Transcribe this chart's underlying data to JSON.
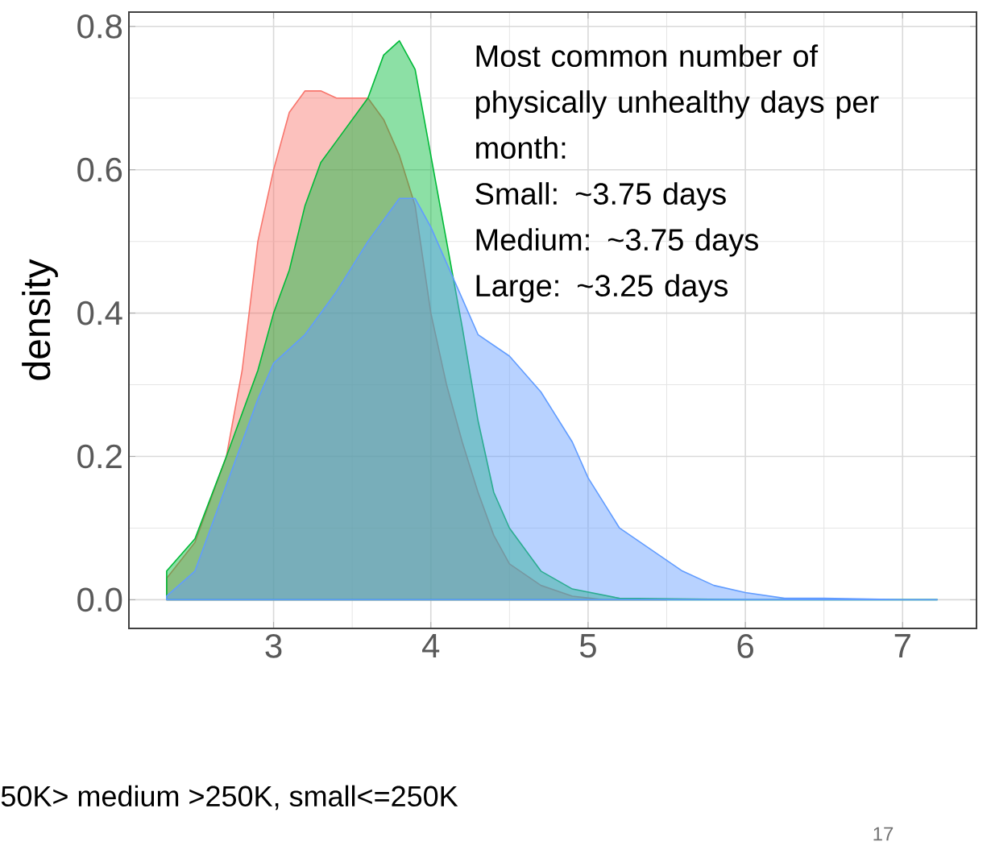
{
  "chart_data": {
    "type": "area",
    "ylabel": "density",
    "xlim": [
      2.08,
      7.47
    ],
    "ylim": [
      -0.04,
      0.82
    ],
    "xticks": [
      3,
      4,
      5,
      6,
      7
    ],
    "yticks": [
      {
        "value": 0,
        "label": "0.0"
      },
      0.2,
      0.4,
      0.6,
      0.8
    ],
    "grid": true,
    "annotations": [
      "Most common number of physically unhealthy days per month:",
      "Small: ~3.75 days",
      "Medium: ~3.75 days",
      "Large: ~3.25 days",
      "50K> medium >250K, small<=250K",
      "17"
    ],
    "series": [
      {
        "color": "#f8766d",
        "x": [
          2.32,
          2.5,
          2.7,
          2.8,
          2.9,
          3.0,
          3.1,
          3.2,
          3.3,
          3.4,
          3.5,
          3.6,
          3.7,
          3.8,
          3.9,
          4.0,
          4.1,
          4.2,
          4.3,
          4.4,
          4.5,
          4.7,
          4.9,
          5.1,
          5.5
        ],
        "values": [
          0.03,
          0.08,
          0.2,
          0.32,
          0.5,
          0.6,
          0.68,
          0.71,
          0.71,
          0.7,
          0.7,
          0.7,
          0.67,
          0.62,
          0.55,
          0.4,
          0.3,
          0.22,
          0.15,
          0.09,
          0.05,
          0.02,
          0.005,
          0.0,
          0.0
        ]
      },
      {
        "color": "#00ba38",
        "x": [
          2.32,
          2.5,
          2.7,
          2.9,
          3.0,
          3.1,
          3.2,
          3.3,
          3.4,
          3.5,
          3.6,
          3.7,
          3.8,
          3.9,
          4.0,
          4.1,
          4.2,
          4.3,
          4.4,
          4.5,
          4.7,
          4.9,
          5.2,
          6.0,
          6.65,
          7.1,
          7.22
        ],
        "values": [
          0.04,
          0.085,
          0.2,
          0.32,
          0.4,
          0.46,
          0.55,
          0.61,
          0.64,
          0.67,
          0.7,
          0.76,
          0.78,
          0.74,
          0.62,
          0.5,
          0.38,
          0.25,
          0.15,
          0.1,
          0.04,
          0.015,
          0.002,
          0.0,
          0.0,
          0.0,
          0.0
        ]
      },
      {
        "color": "#619cff",
        "x": [
          2.32,
          2.5,
          2.7,
          2.9,
          3.0,
          3.2,
          3.4,
          3.6,
          3.8,
          3.9,
          4.0,
          4.1,
          4.2,
          4.3,
          4.5,
          4.7,
          4.9,
          5.0,
          5.2,
          5.4,
          5.6,
          5.8,
          6.0,
          6.25,
          6.5,
          7.0,
          7.22
        ],
        "values": [
          0.005,
          0.04,
          0.16,
          0.28,
          0.33,
          0.37,
          0.43,
          0.5,
          0.56,
          0.56,
          0.52,
          0.47,
          0.42,
          0.37,
          0.34,
          0.29,
          0.22,
          0.17,
          0.1,
          0.07,
          0.04,
          0.02,
          0.01,
          0.002,
          0.002,
          0.0,
          0.0
        ]
      }
    ]
  }
}
